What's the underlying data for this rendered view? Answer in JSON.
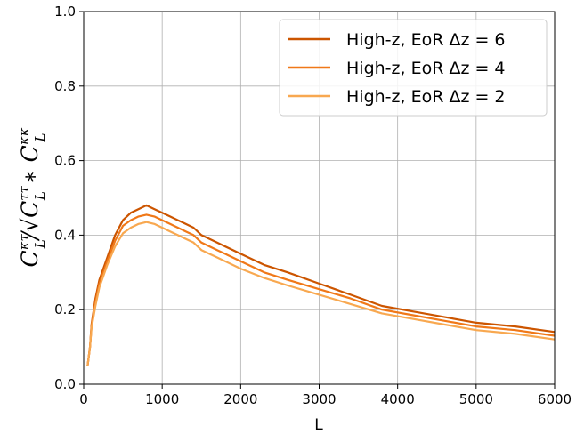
{
  "chart_data": {
    "type": "line",
    "title": "",
    "xlabel": "L",
    "ylabel": {
      "base": "C",
      "sup_num": "κτ",
      "sub": "L",
      "slash": "/√",
      "sup_tt": "ττ",
      "star": " ∗ ",
      "sup_kk": "κκ"
    },
    "xlim": [
      0,
      6000
    ],
    "ylim": [
      0.0,
      1.0
    ],
    "xticks": [
      "0",
      "1000",
      "2000",
      "3000",
      "4000",
      "5000",
      "6000"
    ],
    "yticks": [
      "0.0",
      "0.2",
      "0.4",
      "0.6",
      "0.8",
      "1.0"
    ],
    "grid": true,
    "legend_position": "upper-right",
    "series": [
      {
        "name": "High-z, EoR Δz = 6",
        "color": "#cc5500",
        "x": [
          50,
          80,
          100,
          150,
          200,
          300,
          400,
          500,
          600,
          700,
          800,
          900,
          1000,
          1100,
          1200,
          1300,
          1400,
          1500,
          1700,
          2000,
          2300,
          2600,
          3000,
          3400,
          3800,
          4200,
          4600,
          5000,
          5500,
          6000
        ],
        "y": [
          0.05,
          0.1,
          0.16,
          0.23,
          0.28,
          0.34,
          0.4,
          0.44,
          0.46,
          0.47,
          0.48,
          0.47,
          0.46,
          0.45,
          0.44,
          0.43,
          0.42,
          0.4,
          0.38,
          0.35,
          0.32,
          0.3,
          0.27,
          0.24,
          0.21,
          0.195,
          0.18,
          0.165,
          0.155,
          0.14
        ]
      },
      {
        "name": "High-z, EoR Δz = 4",
        "color": "#f07818",
        "x": [
          50,
          80,
          100,
          150,
          200,
          300,
          400,
          500,
          600,
          700,
          800,
          900,
          1000,
          1100,
          1200,
          1300,
          1400,
          1500,
          1700,
          2000,
          2300,
          2600,
          3000,
          3400,
          3800,
          4200,
          4600,
          5000,
          5500,
          6000
        ],
        "y": [
          0.05,
          0.1,
          0.155,
          0.22,
          0.27,
          0.33,
          0.385,
          0.425,
          0.44,
          0.45,
          0.455,
          0.45,
          0.44,
          0.43,
          0.42,
          0.41,
          0.4,
          0.38,
          0.36,
          0.33,
          0.3,
          0.28,
          0.255,
          0.23,
          0.2,
          0.185,
          0.17,
          0.155,
          0.145,
          0.13
        ]
      },
      {
        "name": "High-z, EoR Δz = 2",
        "color": "#f8a850",
        "x": [
          50,
          80,
          100,
          150,
          200,
          300,
          400,
          500,
          600,
          700,
          800,
          900,
          1000,
          1100,
          1200,
          1300,
          1400,
          1500,
          1700,
          2000,
          2300,
          2600,
          3000,
          3400,
          3800,
          4200,
          4600,
          5000,
          5500,
          6000
        ],
        "y": [
          0.05,
          0.1,
          0.15,
          0.21,
          0.26,
          0.32,
          0.37,
          0.405,
          0.42,
          0.43,
          0.435,
          0.43,
          0.42,
          0.41,
          0.4,
          0.39,
          0.38,
          0.36,
          0.34,
          0.31,
          0.285,
          0.265,
          0.24,
          0.215,
          0.19,
          0.175,
          0.16,
          0.145,
          0.135,
          0.12
        ]
      }
    ]
  }
}
